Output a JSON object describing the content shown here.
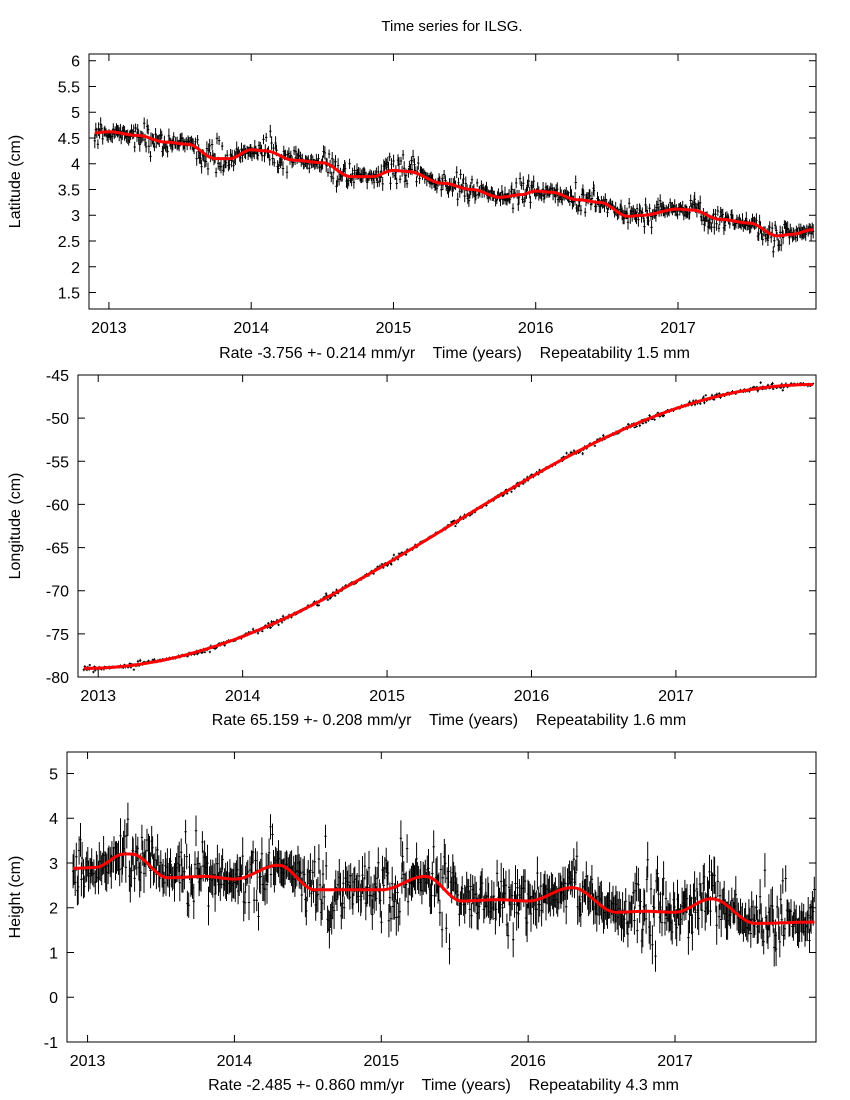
{
  "title": "Time series for ILSG.",
  "colors": {
    "data": "#000000",
    "fit": "#ff0000"
  },
  "chart_data": [
    {
      "type": "scatter",
      "ylabel": "Latitude (cm)",
      "xlabel": "Rate -3.756 +- 0.214 mm/yr    Time (years)    Repeatability 1.5 mm",
      "xlim": [
        2012.86,
        2017.97
      ],
      "ylim": [
        1.18,
        6.13
      ],
      "xticks": [
        "2013",
        "2014",
        "2015",
        "2016",
        "2017"
      ],
      "yticks": [
        "1.5",
        "2",
        "2.5",
        "3",
        "3.5",
        "4",
        "4.5",
        "5",
        "5.5",
        "6"
      ],
      "grid": false,
      "fit": {
        "x": [
          2012.9,
          2013.0,
          2013.2,
          2013.4,
          2013.55,
          2013.75,
          2013.85,
          2014.0,
          2014.1,
          2014.3,
          2014.5,
          2014.7,
          2014.85,
          2015.0,
          2015.1,
          2015.35,
          2015.55,
          2015.75,
          2015.9,
          2016.0,
          2016.1,
          2016.3,
          2016.45,
          2016.65,
          2016.75,
          2017.0,
          2017.1,
          2017.3,
          2017.5,
          2017.7,
          2017.8,
          2017.95
        ],
        "y": [
          4.6,
          4.62,
          4.55,
          4.42,
          4.38,
          4.1,
          4.1,
          4.27,
          4.25,
          4.07,
          4.02,
          3.75,
          3.75,
          3.87,
          3.85,
          3.62,
          3.5,
          3.35,
          3.4,
          3.47,
          3.45,
          3.3,
          3.25,
          2.98,
          3.0,
          3.12,
          3.1,
          2.92,
          2.85,
          2.6,
          2.63,
          2.72
        ]
      },
      "scatter_sd": 0.13
    },
    {
      "type": "scatter",
      "ylabel": "Longitude (cm)",
      "xlabel": "Rate 65.159 +- 0.208 mm/yr    Time (years)    Repeatability 1.6 mm",
      "xlim": [
        2012.86,
        2017.97
      ],
      "ylim": [
        -80,
        -45
      ],
      "xticks": [
        "2013",
        "2014",
        "2015",
        "2016",
        "2017"
      ],
      "yticks": [
        "-80",
        "-75",
        "-70",
        "-65",
        "-60",
        "-55",
        "-50",
        "-45"
      ],
      "grid": false,
      "fit": {
        "x": [
          2012.9,
          2017.95
        ],
        "y": [
          -79.0,
          -46.1
        ]
      },
      "scatter_sd": 0.18
    },
    {
      "type": "scatter",
      "ylabel": "Height (cm)",
      "xlabel": "Rate -2.485 +- 0.860 mm/yr    Time (years)    Repeatability 4.3 mm",
      "xlim": [
        2012.86,
        2017.96
      ],
      "ylim": [
        -1,
        5.48
      ],
      "xticks": [
        "2013",
        "2014",
        "2015",
        "2016",
        "2017"
      ],
      "yticks": [
        "-1",
        "0",
        "1",
        "2",
        "3",
        "4",
        "5"
      ],
      "grid": false,
      "fit": {
        "x": [
          2012.9,
          2013.05,
          2013.25,
          2013.3,
          2013.55,
          2013.8,
          2014.0,
          2014.3,
          2014.55,
          2014.8,
          2015.0,
          2015.3,
          2015.55,
          2015.8,
          2016.0,
          2016.3,
          2016.6,
          2016.8,
          2017.0,
          2017.25,
          2017.55,
          2017.95
        ],
        "y": [
          2.88,
          2.9,
          3.2,
          3.2,
          2.67,
          2.7,
          2.64,
          2.95,
          2.4,
          2.4,
          2.4,
          2.7,
          2.15,
          2.18,
          2.15,
          2.45,
          1.9,
          1.92,
          1.9,
          2.2,
          1.65,
          1.68
        ]
      },
      "scatter_sd": 0.4
    }
  ]
}
